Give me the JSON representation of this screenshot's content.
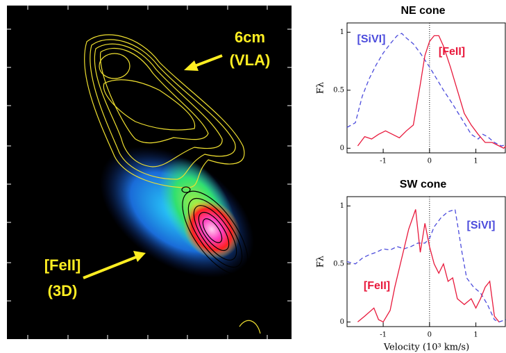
{
  "image_panel": {
    "annotations": [
      "6cm",
      "(VLA)",
      "[FeII]",
      "(3D)"
    ]
  },
  "chart_data": [
    {
      "type": "line",
      "title": "NE cone",
      "y_label": "Fλ",
      "xlim": [
        -1.78,
        1.65
      ],
      "ylim": [
        -0.04,
        1.08
      ],
      "xticks": [
        -1,
        0,
        1
      ],
      "yticks": [
        0,
        0.5,
        1
      ],
      "reference_x": 0,
      "series": [
        {
          "name": "[SiVI]",
          "color": "#4b4bdc",
          "line_style": "dashed",
          "x": [
            -1.78,
            -1.6,
            -1.45,
            -1.3,
            -1.15,
            -1.0,
            -0.85,
            -0.7,
            -0.6,
            -0.5,
            -0.35,
            -0.2,
            0,
            0.15,
            0.3,
            0.5,
            0.7,
            0.9,
            1.05,
            1.15,
            1.25,
            1.4,
            1.55,
            1.65
          ],
          "values": [
            0.18,
            0.22,
            0.45,
            0.6,
            0.72,
            0.82,
            0.9,
            0.97,
            0.99,
            0.95,
            0.9,
            0.82,
            0.7,
            0.6,
            0.5,
            0.38,
            0.25,
            0.12,
            0.08,
            0.12,
            0.1,
            0.05,
            0.02,
            0.03
          ]
        },
        {
          "name": "[FeII]",
          "color": "#e8193c",
          "line_style": "solid",
          "x": [
            -1.55,
            -1.4,
            -1.25,
            -1.1,
            -0.95,
            -0.8,
            -0.65,
            -0.5,
            -0.35,
            -0.2,
            -0.1,
            0,
            0.1,
            0.2,
            0.3,
            0.45,
            0.6,
            0.75,
            0.9,
            1.05,
            1.2,
            1.35,
            1.5,
            1.6,
            1.65
          ],
          "values": [
            0.02,
            0.1,
            0.08,
            0.12,
            0.15,
            0.12,
            0.09,
            0.15,
            0.2,
            0.55,
            0.8,
            0.92,
            0.97,
            0.97,
            0.88,
            0.7,
            0.5,
            0.3,
            0.2,
            0.12,
            0.05,
            0.05,
            0.02,
            0.0,
            0.02
          ]
        }
      ]
    },
    {
      "type": "line",
      "title": "SW cone",
      "y_label": "Fλ",
      "x_label": "Velocity (10³ km/s)",
      "xlim": [
        -1.78,
        1.65
      ],
      "ylim": [
        -0.04,
        1.08
      ],
      "xticks": [
        -1,
        0,
        1
      ],
      "yticks": [
        0,
        0.5,
        1
      ],
      "reference_x": 0,
      "series": [
        {
          "name": "[SiVI]",
          "color": "#4b4bdc",
          "line_style": "dashed",
          "x": [
            -1.78,
            -1.6,
            -1.45,
            -1.3,
            -1.15,
            -1.0,
            -0.85,
            -0.7,
            -0.55,
            -0.4,
            -0.25,
            -0.1,
            0,
            0.1,
            0.25,
            0.4,
            0.55,
            0.6,
            0.7,
            0.8,
            0.95,
            1.1,
            1.25,
            1.4,
            1.5,
            1.65
          ],
          "values": [
            0.52,
            0.5,
            0.55,
            0.58,
            0.6,
            0.63,
            0.62,
            0.65,
            0.63,
            0.65,
            0.68,
            0.68,
            0.72,
            0.82,
            0.9,
            0.95,
            0.97,
            0.85,
            0.6,
            0.38,
            0.3,
            0.25,
            0.15,
            0.02,
            0.0,
            0.02
          ]
        },
        {
          "name": "[FeII]",
          "color": "#e8193c",
          "line_style": "solid",
          "x": [
            -1.55,
            -1.4,
            -1.2,
            -1.1,
            -1.0,
            -0.85,
            -0.75,
            -0.6,
            -0.45,
            -0.3,
            -0.2,
            -0.1,
            0,
            0.1,
            0.2,
            0.3,
            0.4,
            0.5,
            0.6,
            0.75,
            0.9,
            1.0,
            1.1,
            1.2,
            1.3,
            1.4,
            1.5
          ],
          "values": [
            0.0,
            0.05,
            0.12,
            0.02,
            0.0,
            0.1,
            0.3,
            0.55,
            0.8,
            0.97,
            0.6,
            0.85,
            0.65,
            0.5,
            0.42,
            0.5,
            0.35,
            0.38,
            0.2,
            0.15,
            0.2,
            0.12,
            0.2,
            0.3,
            0.35,
            0.05,
            0.0
          ]
        }
      ]
    }
  ]
}
